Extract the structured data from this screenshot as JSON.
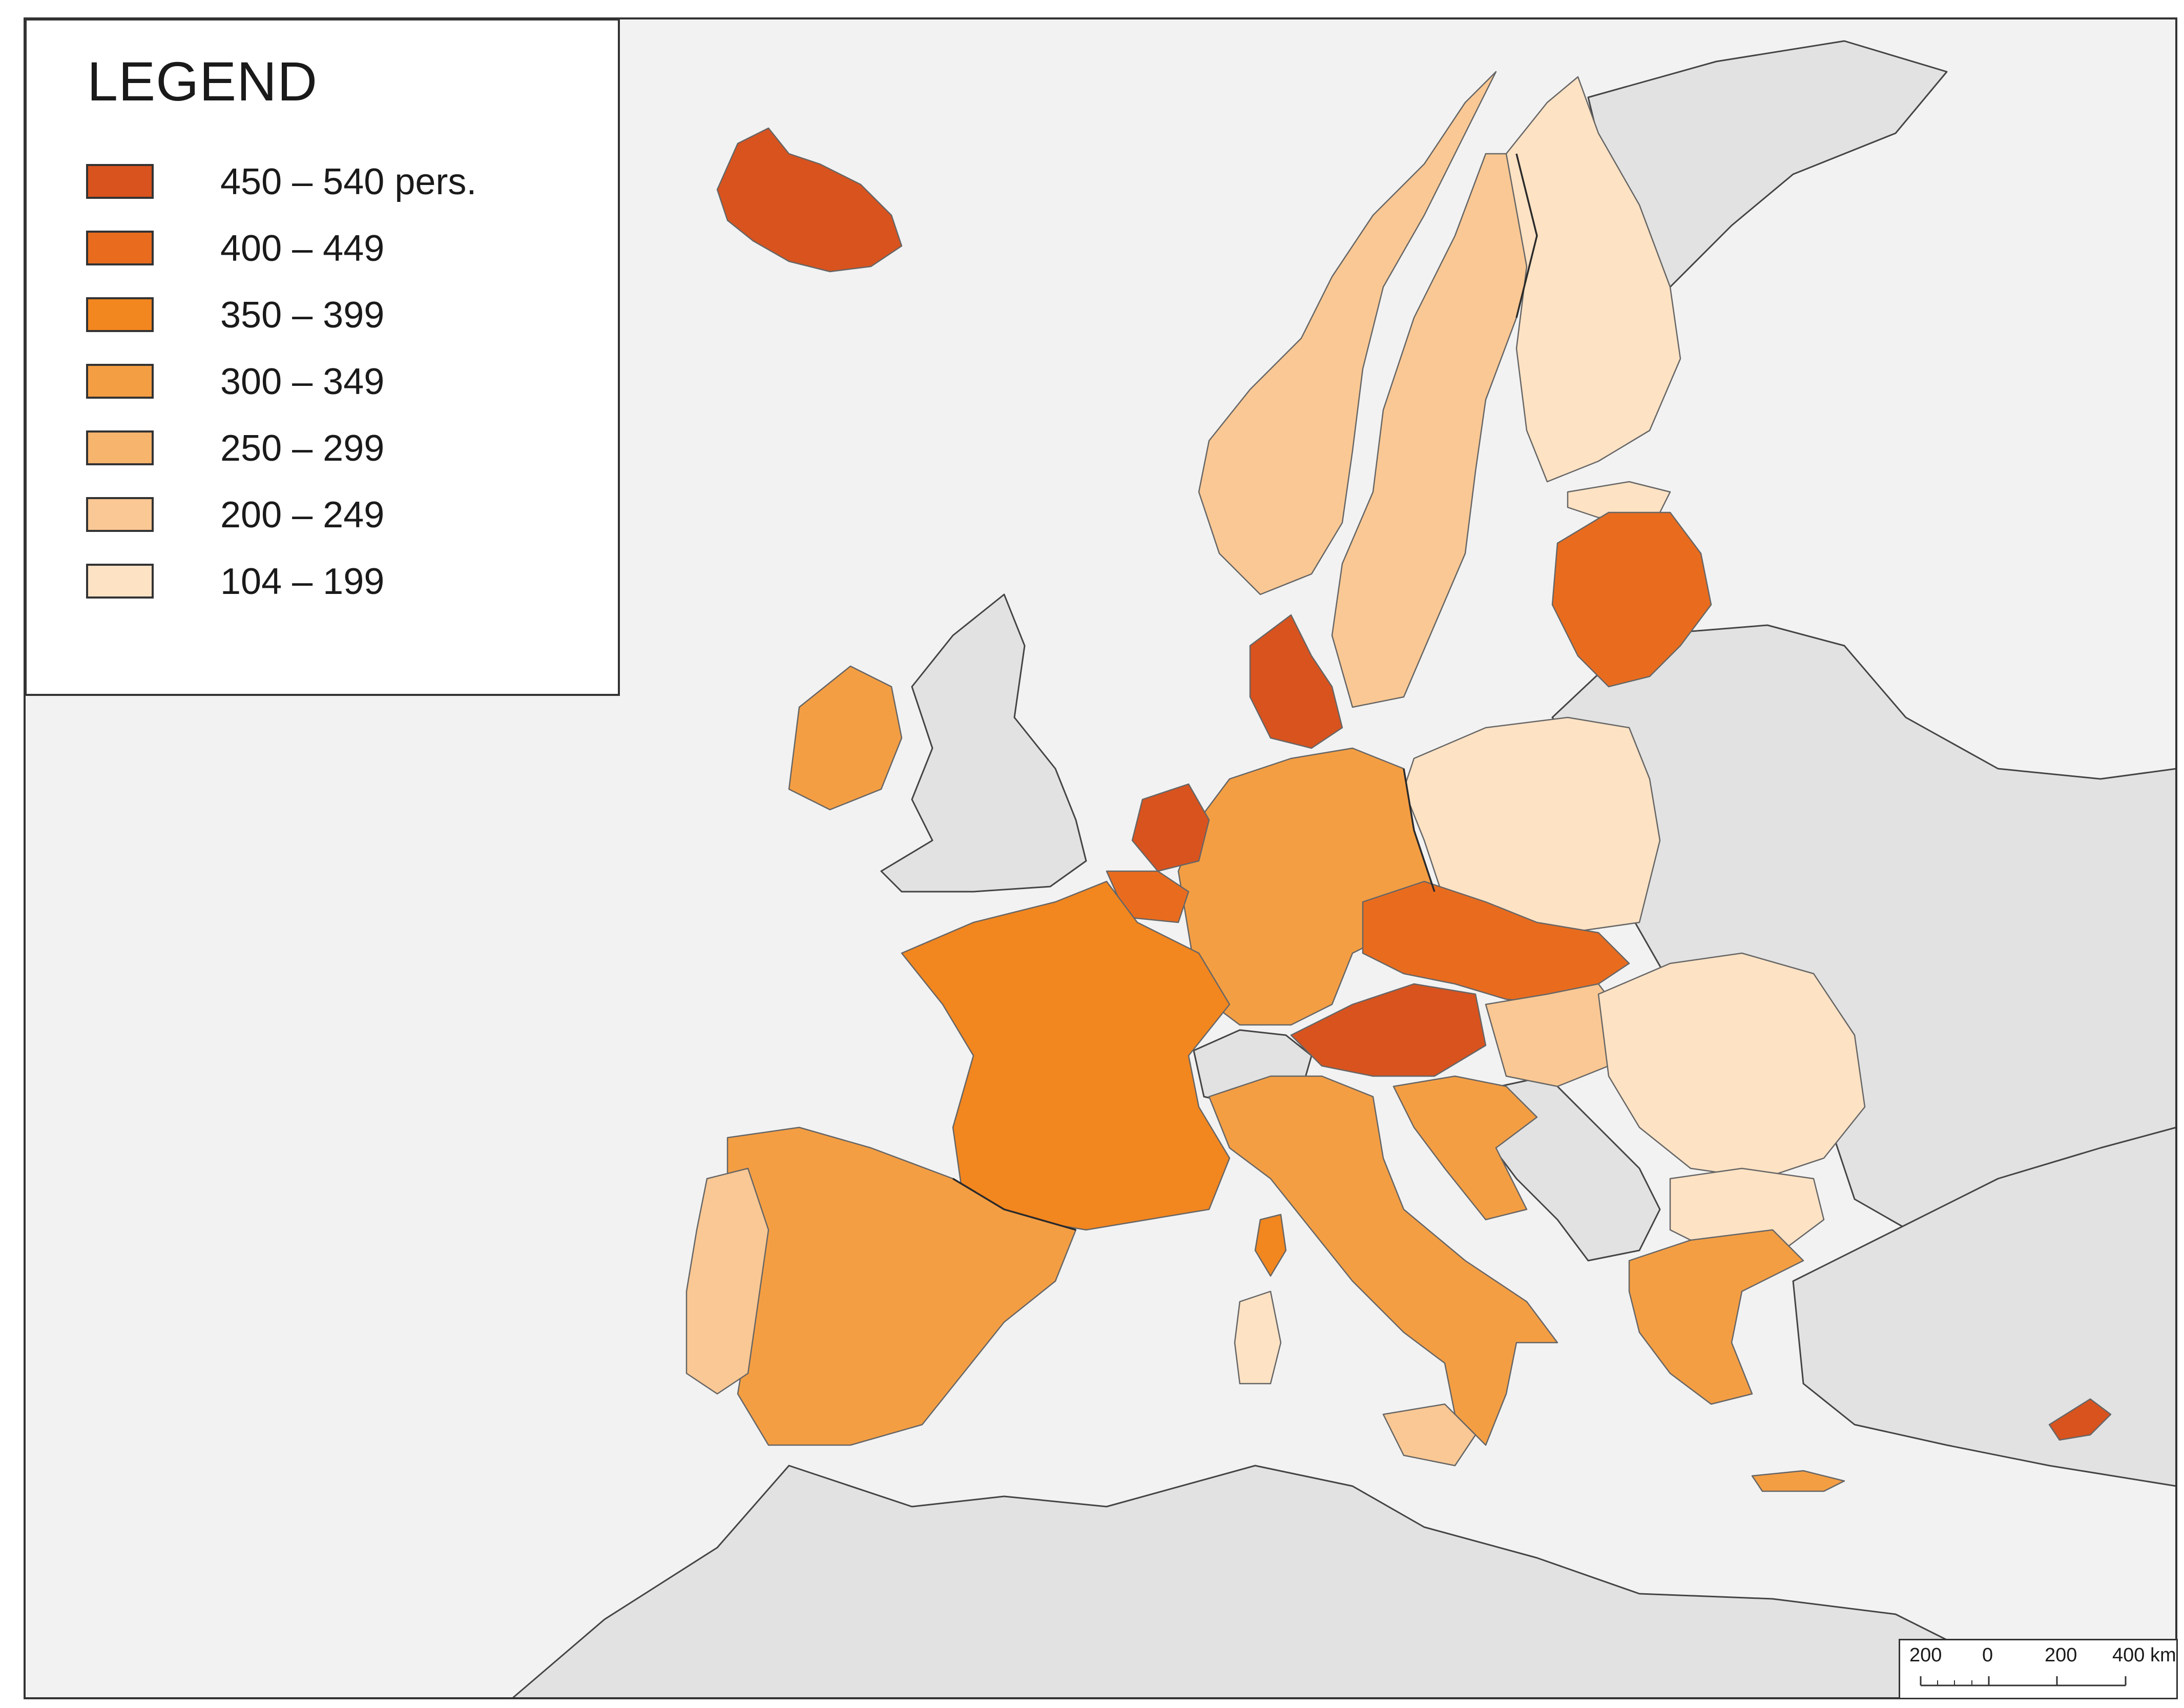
{
  "legend": {
    "title": "LEGEND",
    "items": [
      {
        "label": "450 – 540 pers.",
        "color": "#d9531e"
      },
      {
        "label": "400 – 449",
        "color": "#e96c1e"
      },
      {
        "label": "350 – 399",
        "color": "#f2861f"
      },
      {
        "label": "300 – 349",
        "color": "#f49e43"
      },
      {
        "label": "250 – 299",
        "color": "#f7b46c"
      },
      {
        "label": "200 – 249",
        "color": "#fac894"
      },
      {
        "label": "104 – 199",
        "color": "#fde2c4"
      }
    ]
  },
  "scale_bar": {
    "labels": [
      "200",
      "0",
      "200",
      "400 km"
    ]
  },
  "colors": {
    "sea": "#f2f2f2",
    "non_eu_land": "#e2e2e2",
    "border": "#2a2a2a"
  }
}
